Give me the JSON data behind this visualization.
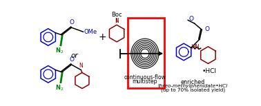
{
  "background_color": "#ffffff",
  "coil_text1": "multistep",
  "coil_text2": "continuous-flow",
  "bottom_text1": "enriched",
  "bottom_text2": "threo-methylphenidate•HCl",
  "bottom_text3": "(up to 70% isolated yield)",
  "boc_color": "#000000",
  "blue_color": "#0000cc",
  "green_color": "#008000",
  "darkred_color": "#8b0000",
  "black_color": "#000000",
  "red_color": "#ff0000"
}
